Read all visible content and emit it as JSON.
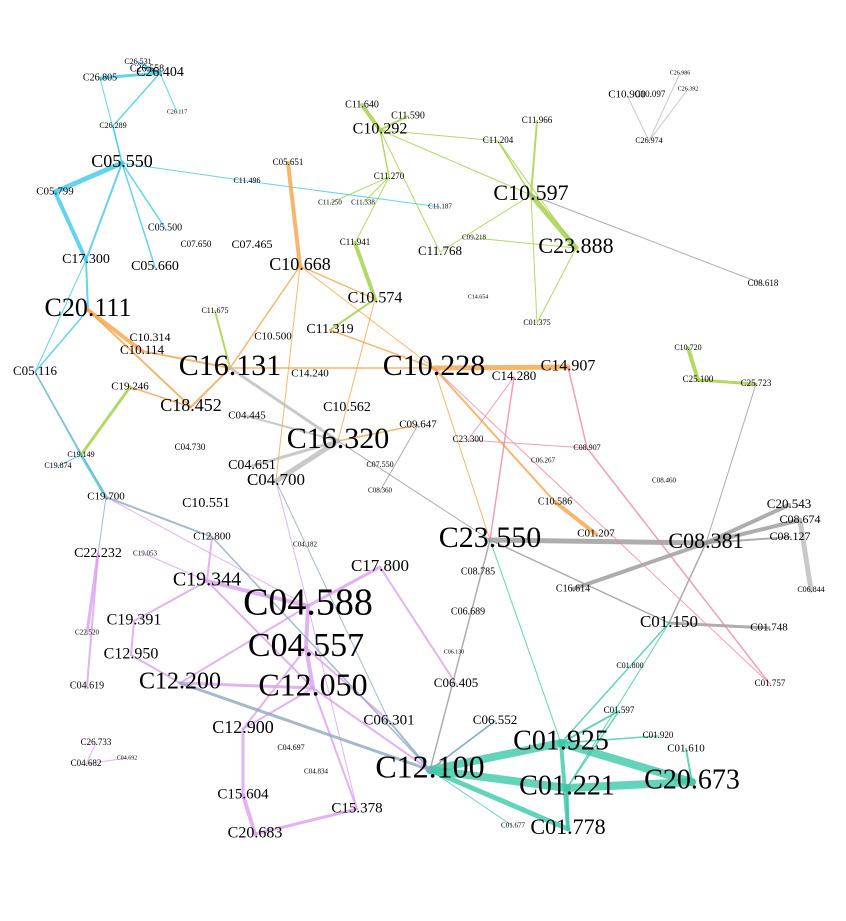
{
  "nodes": [
    "C26.558",
    "C26.531",
    "C26.404",
    "C26.805",
    "C26.289",
    "C26.117",
    "C05.550",
    "C05.799",
    "C11.496",
    "C05.651",
    "C11.250",
    "C11.338",
    "C11.187",
    "C11.270",
    "C11.640",
    "C11.590",
    "C10.292",
    "C11.204",
    "C11.966",
    "C10.900",
    "C10.097",
    "C26.986",
    "C26.392",
    "C26.974",
    "C10.597",
    "C23.888",
    "C09.218",
    "C11.768",
    "C11.941",
    "C10.668",
    "C05.500",
    "C07.650",
    "C07.465",
    "C17.300",
    "C05.660",
    "C20.111",
    "C10.574",
    "C11.675",
    "C10.314",
    "C10.114",
    "C16.131",
    "C10.500",
    "C11.319",
    "C10.228",
    "C14.907",
    "C14.280",
    "C14.240",
    "C05.116",
    "C19.246",
    "C18.452",
    "C04.445",
    "C10.562",
    "C16.320",
    "C09.647",
    "C23.300",
    "C04.730",
    "C04.651",
    "C04.700",
    "C19.874",
    "C19.149",
    "C06.267",
    "C08.907",
    "C19.700",
    "C10.551",
    "C10.586",
    "C01.207",
    "C23.550",
    "C08.381",
    "C20.543",
    "C08.674",
    "C08.127",
    "C22.232",
    "C19.053",
    "C12.800",
    "C19.344",
    "C04.588",
    "C17.800",
    "C08.785",
    "C16.614",
    "C06.689",
    "C19.391",
    "C04.557",
    "C01.150",
    "C01.748",
    "C06.844",
    "C12.950",
    "C12.200",
    "C12.050",
    "C06.405",
    "C22.520",
    "C04.619",
    "C01.800",
    "C01.757",
    "C01.597",
    "C06.301",
    "C06.552",
    "C12.900",
    "C01.925",
    "C01.920",
    "C01.610",
    "C12.100",
    "C01.221",
    "C20.673",
    "C04.697",
    "C04.834",
    "C26.733",
    "C04.682",
    "C04.692",
    "C15.604",
    "C15.378",
    "C20.683",
    "C01.778",
    "C01.677",
    "C01.375",
    "C04.182",
    "C06.130",
    "C08.460",
    "C25.100",
    "C25.723",
    "C10.720",
    "C08.618",
    "C07.550",
    "C08.360",
    "C14.654"
  ]
}
